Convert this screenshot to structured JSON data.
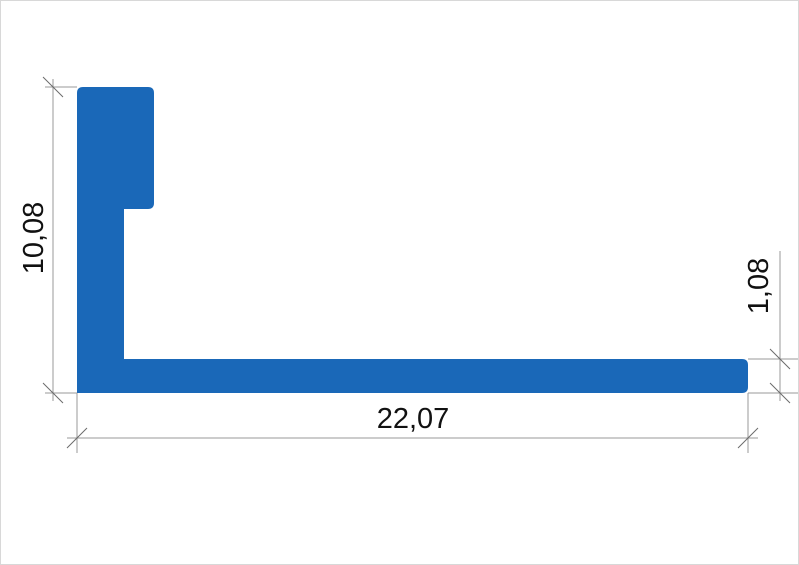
{
  "profile": {
    "fill_color": "#1a68b8"
  },
  "dimensions": {
    "height": "10,08",
    "width": "22,07",
    "thickness": "1,08"
  }
}
